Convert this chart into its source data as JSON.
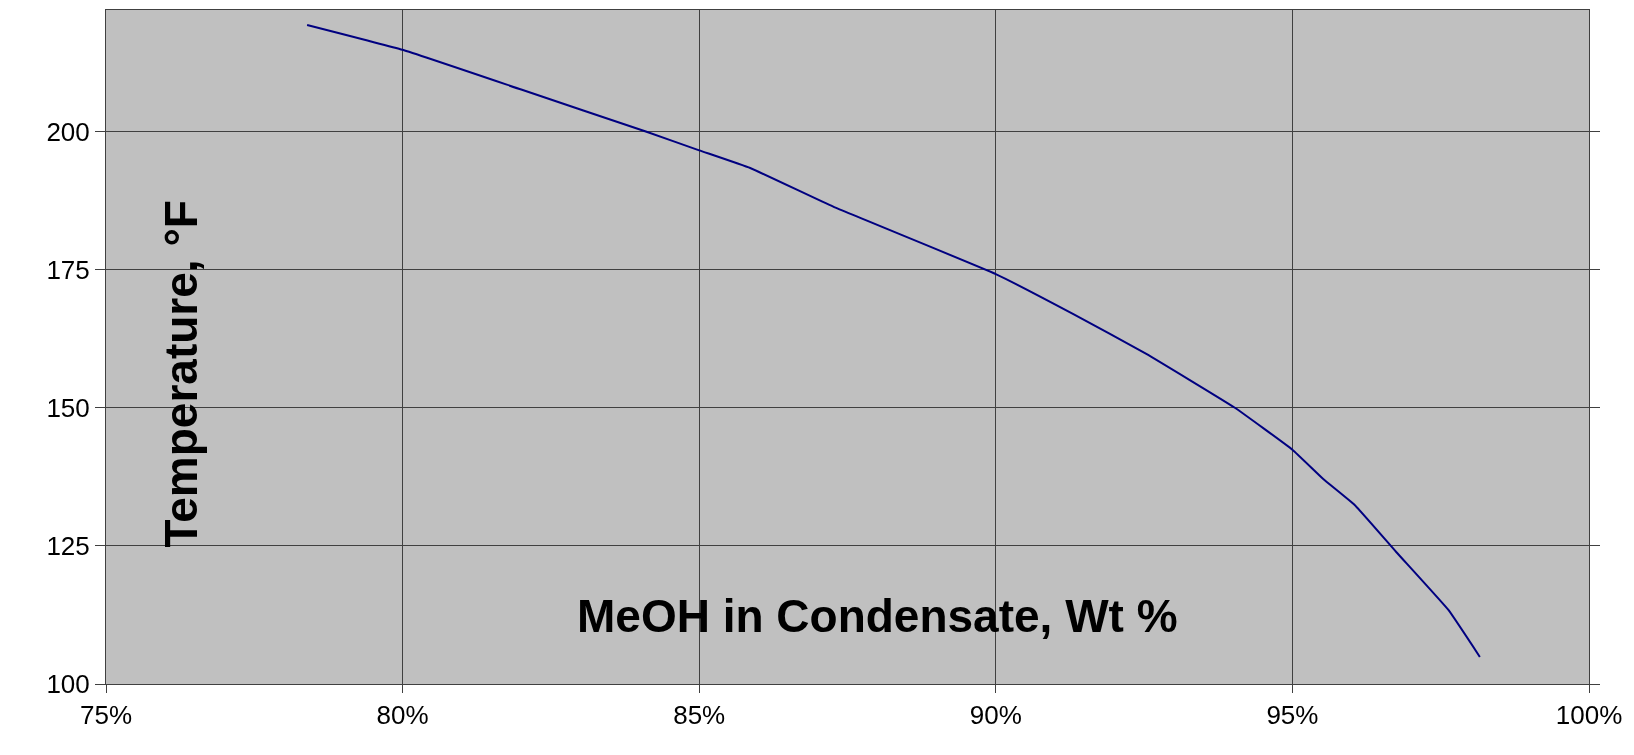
{
  "chart_data": {
    "type": "line",
    "xlabel": "MeOH in Condensate, Wt %",
    "ylabel": "Temperature, °F",
    "x": [
      78.39,
      80.0,
      82.0,
      84.1,
      85.0,
      85.86,
      87.26,
      90.0,
      91.3,
      92.53,
      94.03,
      95.0,
      95.52,
      96.05,
      96.75,
      97.63,
      98.16
    ],
    "series": [
      {
        "color": "#000080",
        "values": [
          219.3,
          214.8,
          207.6,
          200.0,
          196.6,
          193.4,
          186.4,
          174.2,
          167.0,
          159.8,
          150.0,
          142.4,
          137.1,
          132.4,
          123.9,
          113.4,
          104.9
        ]
      }
    ],
    "xlim": [
      75,
      100
    ],
    "xticks": [
      {
        "value": 75,
        "label": "75%"
      },
      {
        "value": 80,
        "label": "80%"
      },
      {
        "value": 85,
        "label": "85%"
      },
      {
        "value": 90,
        "label": "90%"
      },
      {
        "value": 95,
        "label": "95%"
      },
      {
        "value": 100,
        "label": "100%"
      }
    ],
    "ylim": [
      100,
      222
    ],
    "yticks": [
      100,
      125,
      150,
      175,
      200
    ],
    "grid": true,
    "marker": "none",
    "line_style": "solid"
  }
}
